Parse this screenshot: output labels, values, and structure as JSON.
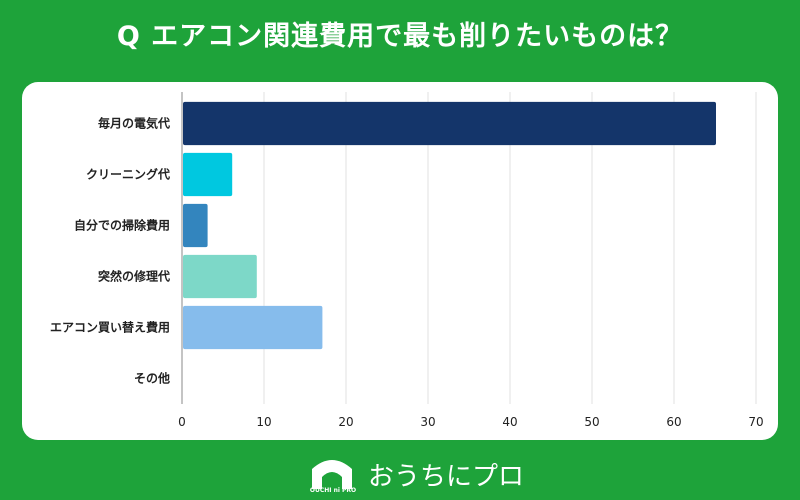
{
  "title": "Q エアコン関連費用で最も削りたいものは？",
  "chart_data": {
    "type": "bar",
    "orientation": "horizontal",
    "categories": [
      "毎月の電気代",
      "クリーニング代",
      "自分での掃除費用",
      "突然の修理代",
      "エアコン買い替え費用",
      "その他"
    ],
    "values": [
      65,
      6,
      3,
      9,
      17,
      0
    ],
    "colors": [
      "#14356a",
      "#00c8e0",
      "#3385be",
      "#7dd8c8",
      "#86bcec",
      "#cccccc"
    ],
    "xlim": [
      0,
      70
    ],
    "xticks": [
      0,
      10,
      20,
      30,
      40,
      50,
      60,
      70
    ],
    "grid": true
  },
  "logo": {
    "text": "おうちにプロ",
    "mini_text": "OUCHI ni PRO"
  }
}
